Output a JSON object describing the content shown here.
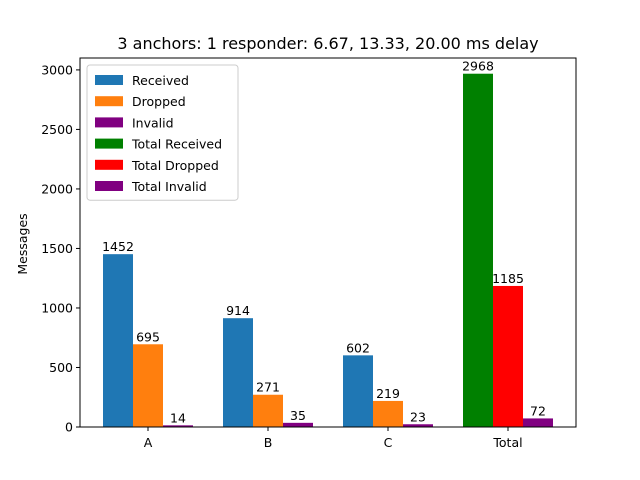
{
  "chart_data": {
    "type": "bar",
    "title": "3 anchors: 1 responder: 6.67, 13.33, 20.00 ms delay",
    "xlabel": "",
    "ylabel": "Messages",
    "ylim": [
      0,
      3100
    ],
    "yticks": [
      0,
      500,
      1000,
      1500,
      2000,
      2500,
      3000
    ],
    "categories": [
      "A",
      "B",
      "C",
      "Total"
    ],
    "grid": false,
    "legend_position": "top-left",
    "series": [
      {
        "name": "Received",
        "color": "#1f77b4",
        "values": [
          1452,
          914,
          602,
          null
        ]
      },
      {
        "name": "Dropped",
        "color": "#ff7f0e",
        "values": [
          695,
          271,
          219,
          null
        ]
      },
      {
        "name": "Invalid",
        "color": "#800080",
        "values": [
          14,
          35,
          23,
          null
        ]
      },
      {
        "name": "Total Received",
        "color": "#008000",
        "values": [
          null,
          null,
          null,
          2968
        ]
      },
      {
        "name": "Total Dropped",
        "color": "#ff0000",
        "values": [
          null,
          null,
          null,
          1185
        ]
      },
      {
        "name": "Total Invalid",
        "color": "#800080",
        "values": [
          null,
          null,
          null,
          72
        ]
      }
    ]
  }
}
